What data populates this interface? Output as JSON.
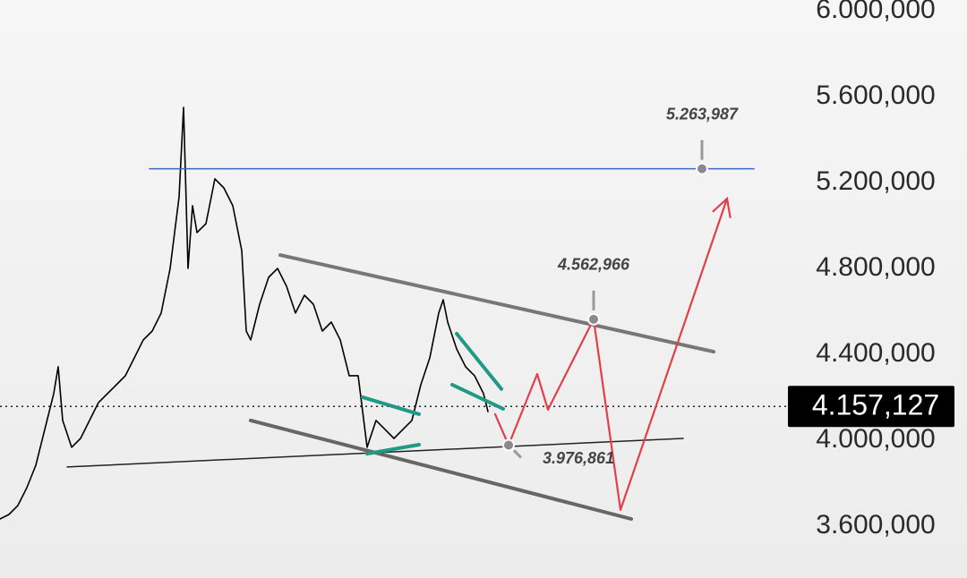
{
  "chart_data": {
    "type": "line",
    "xlim": [
      0,
      108
    ],
    "ylim": [
      3358000,
      6050000
    ],
    "yticks": [
      {
        "value": 6000000,
        "label": "6.000,000"
      },
      {
        "value": 5600000,
        "label": "5.600,000"
      },
      {
        "value": 5200000,
        "label": "5.200,000"
      },
      {
        "value": 4800000,
        "label": "4.800,000"
      },
      {
        "value": 4400000,
        "label": "4.400,000"
      },
      {
        "value": 4000000,
        "label": "4.000,000"
      },
      {
        "value": 3600000,
        "label": "3.600,000"
      }
    ],
    "series": [
      {
        "color": "#000000",
        "width": 1.6,
        "x": [
          0,
          1,
          2,
          3,
          4,
          5,
          6,
          6.5,
          7,
          8,
          9,
          10,
          11,
          12,
          13,
          14,
          15,
          16,
          17,
          18,
          19,
          20,
          20.5,
          21,
          21.5,
          22,
          23,
          24,
          25,
          26,
          27,
          27.5,
          28,
          29,
          30,
          31,
          32,
          33,
          34,
          35,
          36,
          37,
          38,
          39,
          40,
          41,
          42,
          43,
          44,
          45,
          46,
          47,
          48,
          49,
          49.5,
          50,
          51,
          52,
          53,
          54,
          54.5
        ],
        "values": [
          3633000,
          3654000,
          3696000,
          3779000,
          3883000,
          4050000,
          4217000,
          4342000,
          4092000,
          3967000,
          4008000,
          4092000,
          4175000,
          4217000,
          4258000,
          4300000,
          4383000,
          4467000,
          4508000,
          4592000,
          4800000,
          5133000,
          5550000,
          4800000,
          5092000,
          4967000,
          5008000,
          5217000,
          5175000,
          5092000,
          4883000,
          4508000,
          4467000,
          4633000,
          4758000,
          4800000,
          4717000,
          4592000,
          4675000,
          4633000,
          4508000,
          4550000,
          4467000,
          4300000,
          4300000,
          3967000,
          4092000,
          4050000,
          4008000,
          4050000,
          4092000,
          4258000,
          4383000,
          4592000,
          4654000,
          4550000,
          4425000,
          4342000,
          4300000,
          4217000,
          4133000
        ]
      },
      {
        "color": "#3a66c8",
        "width": 1.5,
        "x": [
          16.7,
          84.2
        ],
        "values": [
          5263987,
          5263987
        ]
      },
      {
        "color": "#777777",
        "width": 4,
        "x": [
          31.3,
          79.7
        ],
        "values": [
          4862000,
          4412000
        ]
      },
      {
        "color": "#666666",
        "width": 4,
        "x": [
          28,
          70.5
        ],
        "values": [
          4092000,
          3633000
        ]
      },
      {
        "color": "#222222",
        "width": 1.5,
        "x": [
          7.5,
          76.3
        ],
        "values": [
          3875000,
          4008000
        ]
      },
      {
        "color": "#1f9a84",
        "width": 4,
        "x": [
          40.5,
          46.8
        ],
        "values": [
          4200000,
          4121000
        ]
      },
      {
        "color": "#1f9a84",
        "width": 4,
        "x": [
          41,
          46.8
        ],
        "values": [
          3937000,
          3979000
        ]
      },
      {
        "color": "#1f9a84",
        "width": 4,
        "x": [
          51,
          56
        ],
        "values": [
          4496000,
          4238000
        ]
      },
      {
        "color": "#1f9a84",
        "width": 4,
        "x": [
          50.5,
          56.2
        ],
        "values": [
          4258000,
          4146000
        ]
      },
      {
        "color": "#e0404a",
        "width": 2.2,
        "x": [
          55.3,
          56.8,
          60,
          61.2,
          66.3,
          69.3,
          81.2
        ],
        "values": [
          4121000,
          3976861,
          4308000,
          4142000,
          4562966,
          3675000,
          5125000
        ]
      }
    ],
    "annotations": [
      {
        "x": 78.4,
        "value": 5263987,
        "label": "5.263,987"
      },
      {
        "x": 66.3,
        "value": 4562966,
        "label": "4.562,966"
      },
      {
        "x": 56.8,
        "value": 3976861,
        "label": "3.976,861"
      }
    ],
    "last_price": {
      "value": 4157127,
      "label": "4.157,127"
    }
  }
}
